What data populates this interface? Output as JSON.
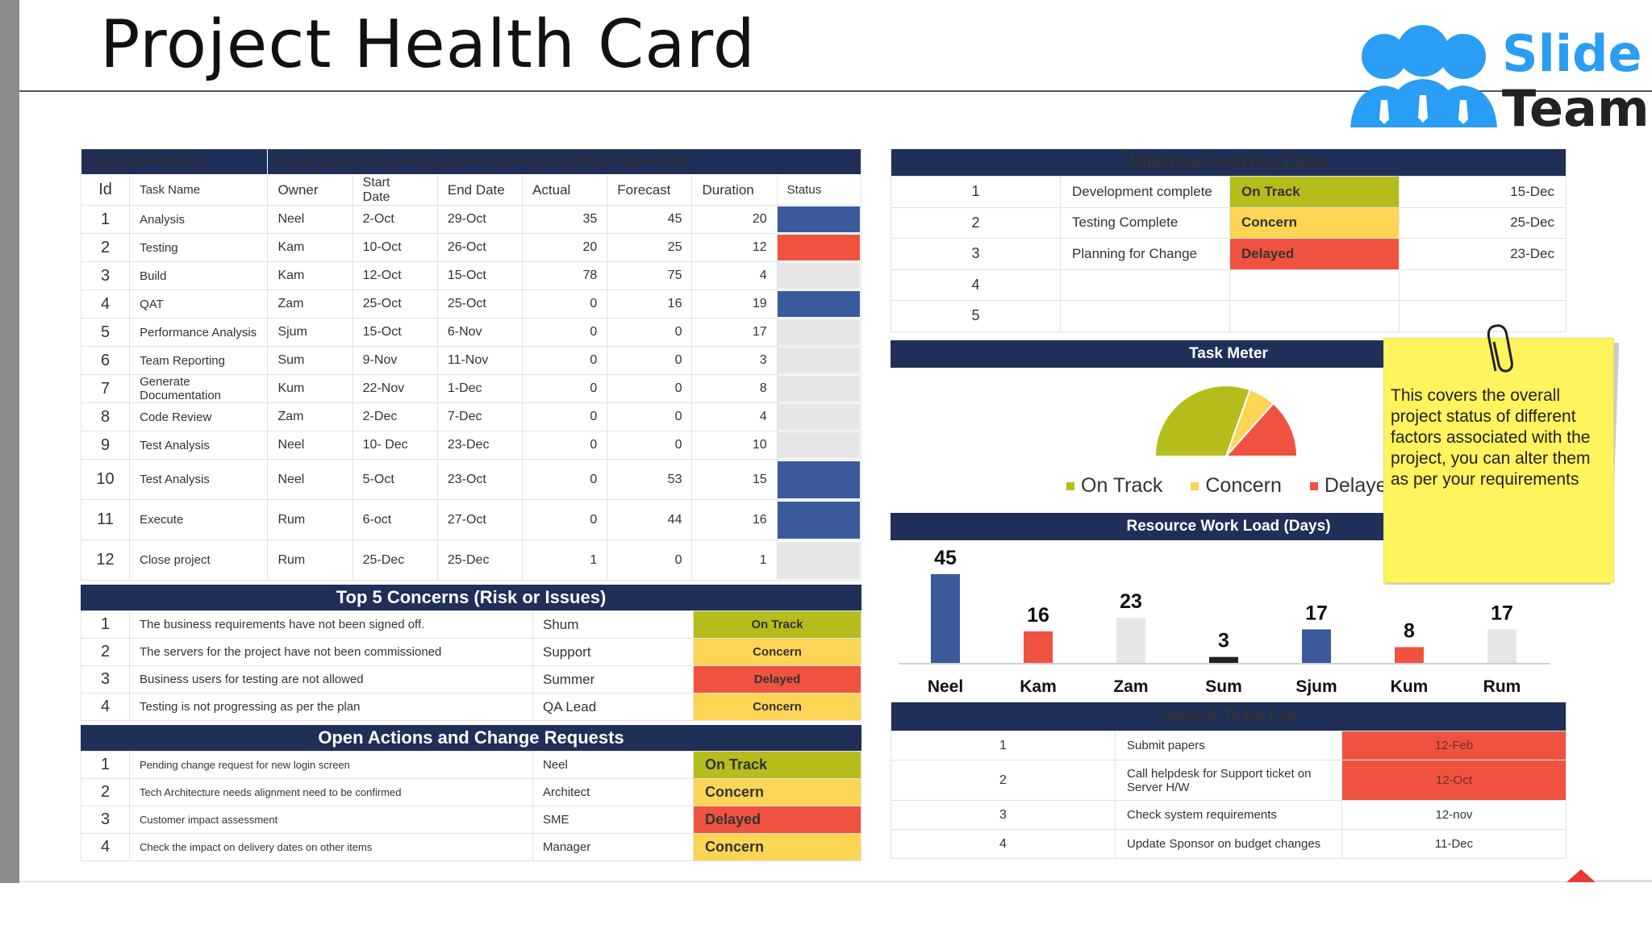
{
  "title": "Project Health Card",
  "logo": {
    "line1": "Slide",
    "line2": "Team"
  },
  "colors": {
    "navy": "#1f2f57",
    "green": "#b5bd1d",
    "yellow": "#fdd554",
    "red": "#ef5340",
    "blue": "#3a5a9c",
    "gray": "#e6e6e6"
  },
  "tasks": {
    "stakeholders_label": "Key Stakeholders",
    "stakeholders": "Raj K, Sam Manh, Kim k, Zuhen Kahen, Mark Wall, Ruther Kem",
    "columns": {
      "id": "Id",
      "name": "Task Name",
      "owner": "Owner",
      "start": "Start Date",
      "end": "End Date",
      "actual": "Actual",
      "forecast": "Forecast",
      "duration": "Duration",
      "status": "Status"
    },
    "rows": [
      {
        "id": "1",
        "name": "Analysis",
        "owner": "Neel",
        "start": "2-Oct",
        "end": "29-Oct",
        "actual": "35",
        "forecast": "45",
        "duration": "20",
        "status": "blue"
      },
      {
        "id": "2",
        "name": "Testing",
        "owner": "Kam",
        "start": "10-Oct",
        "end": "26-Oct",
        "actual": "20",
        "forecast": "25",
        "duration": "12",
        "status": "red"
      },
      {
        "id": "3",
        "name": "Build",
        "owner": "Kam",
        "start": "12-Oct",
        "end": "15-Oct",
        "actual": "78",
        "forecast": "75",
        "duration": "4",
        "status": "gray"
      },
      {
        "id": "4",
        "name": "QAT",
        "owner": "Zam",
        "start": "25-Oct",
        "end": "25-Oct",
        "actual": "0",
        "forecast": "16",
        "duration": "19",
        "status": "blue"
      },
      {
        "id": "5",
        "name": "Performance Analysis",
        "owner": "Sjum",
        "start": "15-Oct",
        "end": "6-Nov",
        "actual": "0",
        "forecast": "0",
        "duration": "17",
        "status": "gray"
      },
      {
        "id": "6",
        "name": "Team Reporting",
        "owner": "Sum",
        "start": "9-Nov",
        "end": "11-Nov",
        "actual": "0",
        "forecast": "0",
        "duration": "3",
        "status": "gray"
      },
      {
        "id": "7",
        "name": "Generate Documentation",
        "owner": "Kum",
        "start": "22-Nov",
        "end": "1-Dec",
        "actual": "0",
        "forecast": "0",
        "duration": "8",
        "status": "gray"
      },
      {
        "id": "8",
        "name": "Code Review",
        "owner": "Zam",
        "start": "2-Dec",
        "end": "7-Dec",
        "actual": "0",
        "forecast": "0",
        "duration": "4",
        "status": "gray"
      },
      {
        "id": "9",
        "name": "Test Analysis",
        "owner": "Neel",
        "start": "10- Dec",
        "end": "23-Dec",
        "actual": "0",
        "forecast": "0",
        "duration": "10",
        "status": "gray"
      },
      {
        "id": "10",
        "name": "Test Analysis",
        "owner": "Neel",
        "start": "5-Oct",
        "end": "23-Oct",
        "actual": "0",
        "forecast": "53",
        "duration": "15",
        "status": "blue"
      },
      {
        "id": "11",
        "name": "Execute",
        "owner": "Rum",
        "start": "6-oct",
        "end": "27-Oct",
        "actual": "0",
        "forecast": "44",
        "duration": "16",
        "status": "blue"
      },
      {
        "id": "12",
        "name": "Close project",
        "owner": "Rum",
        "start": "25-Dec",
        "end": "25-Dec",
        "actual": "1",
        "forecast": "0",
        "duration": "1",
        "status": "gray"
      }
    ]
  },
  "concerns": {
    "title": "Top 5 Concerns (Risk or Issues)",
    "rows": [
      {
        "id": "1",
        "text": "The business requirements have not been signed off.",
        "owner": "Shum",
        "status": "On Track",
        "color": "green"
      },
      {
        "id": "2",
        "text": "The servers for the project have not been commissioned",
        "owner": "Support",
        "status": "Concern",
        "color": "yellow"
      },
      {
        "id": "3",
        "text": "Business users for testing are not allowed",
        "owner": "Summer",
        "status": "Delayed",
        "color": "red"
      },
      {
        "id": "4",
        "text": "Testing is not progressing as per the plan",
        "owner": "QA Lead",
        "status": "Concern",
        "color": "yellow"
      }
    ]
  },
  "actions": {
    "title": "Open Actions and Change Requests",
    "rows": [
      {
        "id": "1",
        "text": "Pending change request for new login screen",
        "owner": "Neel",
        "status": "On Track",
        "color": "green"
      },
      {
        "id": "2",
        "text": "Tech Architecture needs alignment need to be confirmed",
        "owner": "Architect",
        "status": "Concern",
        "color": "yellow"
      },
      {
        "id": "3",
        "text": "Customer impact assessment",
        "owner": "SME",
        "status": "Delayed",
        "color": "red"
      },
      {
        "id": "4",
        "text": "Check the impact on delivery dates on other items",
        "owner": "Manager",
        "status": "Concern",
        "color": "yellow"
      }
    ]
  },
  "milestones": {
    "title": "Milestones and Key Dates",
    "rows": [
      {
        "id": "1",
        "name": "Development complete",
        "status": "On Track",
        "color": "green",
        "date": "15-Dec"
      },
      {
        "id": "2",
        "name": "Testing Complete",
        "status": "Concern",
        "color": "yellow",
        "date": "25-Dec"
      },
      {
        "id": "3",
        "name": "Planning for Change",
        "status": "Delayed",
        "color": "red",
        "date": "23-Dec"
      },
      {
        "id": "4",
        "name": "",
        "status": "",
        "color": "",
        "date": ""
      },
      {
        "id": "5",
        "name": "",
        "status": "",
        "color": "",
        "date": ""
      }
    ]
  },
  "task_meter": {
    "title": "Task Meter",
    "legend": [
      "On Track",
      "Concern",
      "Delayed"
    ]
  },
  "workload": {
    "title": "Resource Work Load (Days)"
  },
  "chart_data": [
    {
      "type": "pie",
      "title": "Task Meter",
      "labels": [
        "On Track",
        "Concern",
        "Delayed"
      ],
      "values": [
        50,
        10,
        22
      ],
      "colors": [
        "#b5bd1d",
        "#fdd554",
        "#ef5340"
      ]
    },
    {
      "type": "bar",
      "title": "Resource Work Load (Days)",
      "categories": [
        "Neel",
        "Kam",
        "Zam",
        "Sum",
        "Sjum",
        "Kum",
        "Rum"
      ],
      "values": [
        45,
        16,
        23,
        3,
        17,
        8,
        17
      ],
      "colors": [
        "#3a5a9c",
        "#ef5340",
        "#e6e6e6",
        "#222222",
        "#3a5a9c",
        "#ef5340",
        "#e6e6e6"
      ],
      "ylim": [
        0,
        45
      ]
    }
  ],
  "notes": {
    "title": "Notes & To Do List",
    "rows": [
      {
        "id": "1",
        "text": "Submit papers",
        "date": "12-Feb",
        "highlight": true
      },
      {
        "id": "2",
        "text": "Call helpdesk for Support ticket on Server H/W",
        "date": "12-Oct",
        "highlight": true
      },
      {
        "id": "3",
        "text": "Check system requirements",
        "date": "12-nov",
        "highlight": false
      },
      {
        "id": "4",
        "text": "Update Sponsor on budget changes",
        "date": "11-Dec",
        "highlight": false
      }
    ]
  },
  "sticky_note": "This covers the overall project status of different factors associated with the project, you can alter them as per your requirements"
}
